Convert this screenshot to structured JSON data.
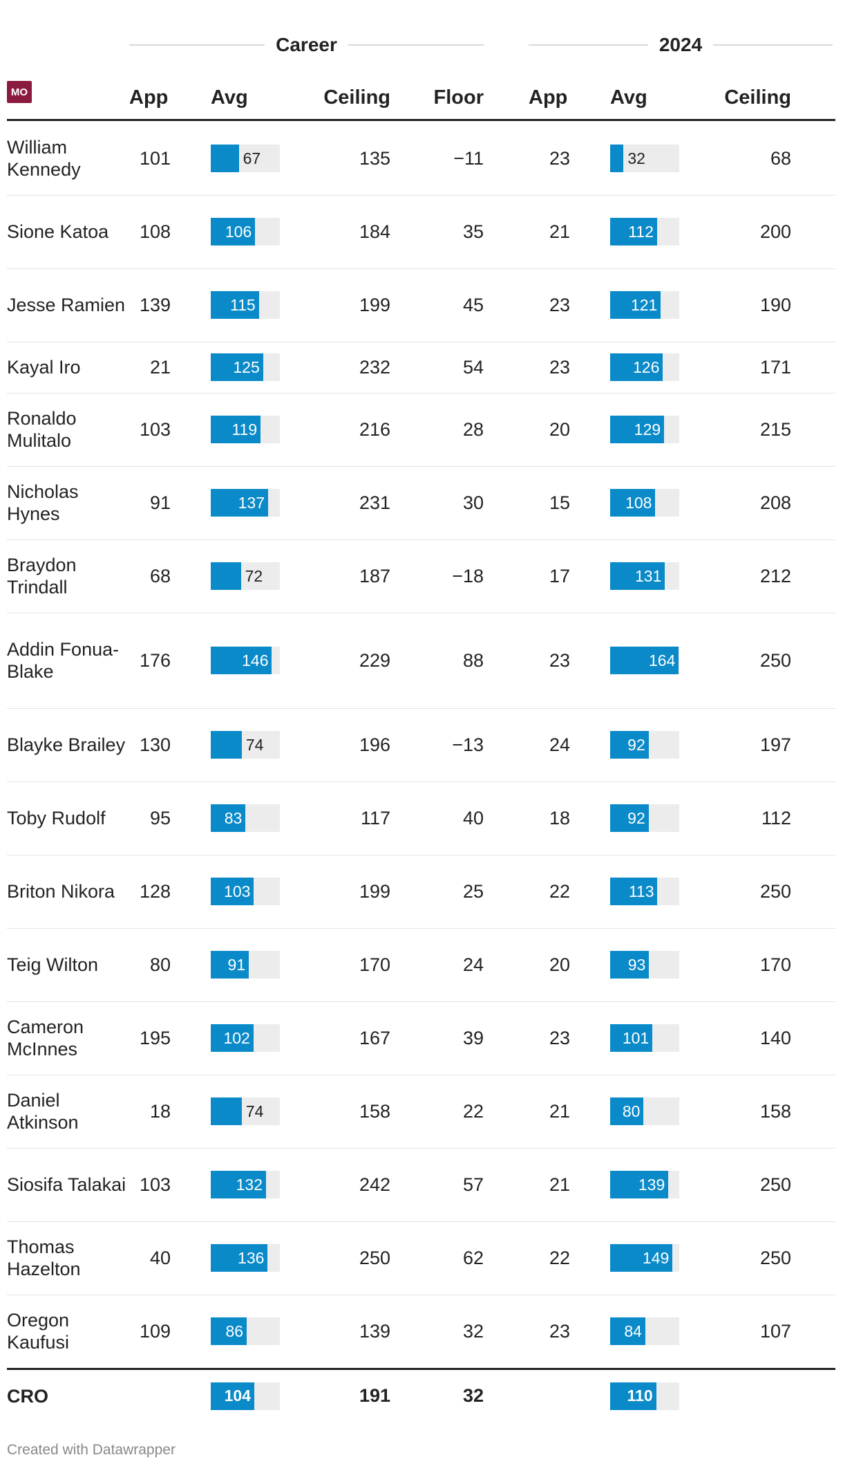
{
  "chart_data": {
    "type": "table",
    "badge": "MO",
    "groups": [
      {
        "title": "Career",
        "columns": [
          "App",
          "Avg",
          "Ceiling",
          "Floor"
        ]
      },
      {
        "title": "2024",
        "columns": [
          "App",
          "Avg",
          "Ceiling"
        ]
      }
    ],
    "bar_max": 165,
    "rows": [
      {
        "name": "William Kennedy",
        "career": {
          "app": "101",
          "avg": 67,
          "ceiling": "135",
          "floor": "−11"
        },
        "y2024": {
          "app": "23",
          "avg": 32,
          "ceiling": "68"
        }
      },
      {
        "name": "Sione Katoa",
        "career": {
          "app": "108",
          "avg": 106,
          "ceiling": "184",
          "floor": "35"
        },
        "y2024": {
          "app": "21",
          "avg": 112,
          "ceiling": "200"
        }
      },
      {
        "name": "Jesse Ramien",
        "career": {
          "app": "139",
          "avg": 115,
          "ceiling": "199",
          "floor": "45"
        },
        "y2024": {
          "app": "23",
          "avg": 121,
          "ceiling": "190"
        }
      },
      {
        "name": "Kayal Iro",
        "career": {
          "app": "21",
          "avg": 125,
          "ceiling": "232",
          "floor": "54"
        },
        "y2024": {
          "app": "23",
          "avg": 126,
          "ceiling": "171"
        }
      },
      {
        "name": "Ronaldo Mulitalo",
        "career": {
          "app": "103",
          "avg": 119,
          "ceiling": "216",
          "floor": "28"
        },
        "y2024": {
          "app": "20",
          "avg": 129,
          "ceiling": "215"
        }
      },
      {
        "name": "Nicholas Hynes",
        "career": {
          "app": "91",
          "avg": 137,
          "ceiling": "231",
          "floor": "30"
        },
        "y2024": {
          "app": "15",
          "avg": 108,
          "ceiling": "208"
        }
      },
      {
        "name": "Braydon Trindall",
        "career": {
          "app": "68",
          "avg": 72,
          "ceiling": "187",
          "floor": "−18"
        },
        "y2024": {
          "app": "17",
          "avg": 131,
          "ceiling": "212"
        }
      },
      {
        "name": "Addin Fonua-Blake",
        "career": {
          "app": "176",
          "avg": 146,
          "ceiling": "229",
          "floor": "88"
        },
        "y2024": {
          "app": "23",
          "avg": 164,
          "ceiling": "250"
        }
      },
      {
        "name": "Blayke Brailey",
        "career": {
          "app": "130",
          "avg": 74,
          "ceiling": "196",
          "floor": "−13"
        },
        "y2024": {
          "app": "24",
          "avg": 92,
          "ceiling": "197"
        }
      },
      {
        "name": "Toby Rudolf",
        "career": {
          "app": "95",
          "avg": 83,
          "ceiling": "117",
          "floor": "40"
        },
        "y2024": {
          "app": "18",
          "avg": 92,
          "ceiling": "112"
        }
      },
      {
        "name": "Briton Nikora",
        "career": {
          "app": "128",
          "avg": 103,
          "ceiling": "199",
          "floor": "25"
        },
        "y2024": {
          "app": "22",
          "avg": 113,
          "ceiling": "250"
        }
      },
      {
        "name": "Teig Wilton",
        "career": {
          "app": "80",
          "avg": 91,
          "ceiling": "170",
          "floor": "24"
        },
        "y2024": {
          "app": "20",
          "avg": 93,
          "ceiling": "170"
        }
      },
      {
        "name": "Cameron McInnes",
        "career": {
          "app": "195",
          "avg": 102,
          "ceiling": "167",
          "floor": "39"
        },
        "y2024": {
          "app": "23",
          "avg": 101,
          "ceiling": "140"
        }
      },
      {
        "name": "Daniel Atkinson",
        "career": {
          "app": "18",
          "avg": 74,
          "ceiling": "158",
          "floor": "22"
        },
        "y2024": {
          "app": "21",
          "avg": 80,
          "ceiling": "158"
        }
      },
      {
        "name": "Siosifa Talakai",
        "career": {
          "app": "103",
          "avg": 132,
          "ceiling": "242",
          "floor": "57"
        },
        "y2024": {
          "app": "21",
          "avg": 139,
          "ceiling": "250"
        }
      },
      {
        "name": "Thomas Hazelton",
        "career": {
          "app": "40",
          "avg": 136,
          "ceiling": "250",
          "floor": "62"
        },
        "y2024": {
          "app": "22",
          "avg": 149,
          "ceiling": "250"
        }
      },
      {
        "name": "Oregon Kaufusi",
        "career": {
          "app": "109",
          "avg": 86,
          "ceiling": "139",
          "floor": "32"
        },
        "y2024": {
          "app": "23",
          "avg": 84,
          "ceiling": "107"
        }
      }
    ],
    "total": {
      "name": "CRO",
      "career": {
        "app": "",
        "avg": 104,
        "ceiling": "191",
        "floor": "32"
      },
      "y2024": {
        "app": "",
        "avg": 110,
        "ceiling": ""
      }
    }
  },
  "footer": {
    "credit": "Created with Datawrapper"
  }
}
